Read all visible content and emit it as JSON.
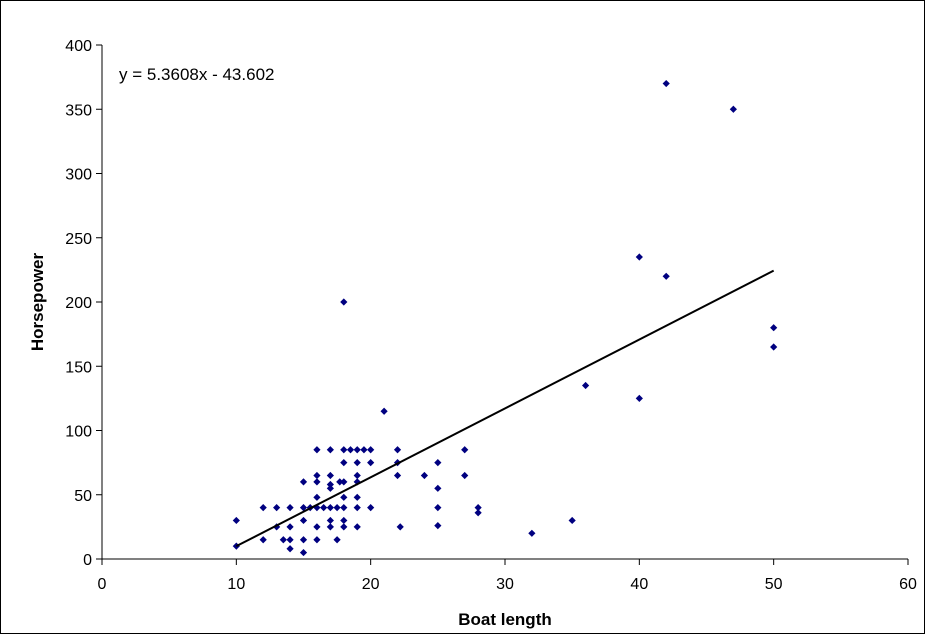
{
  "chart_data": {
    "type": "scatter",
    "title": "",
    "xlabel": "Boat length",
    "ylabel": "Horsepower",
    "xlim": [
      0,
      60
    ],
    "ylim": [
      0,
      400
    ],
    "x_ticks": [
      "0",
      "10",
      "20",
      "30",
      "40",
      "50",
      "60"
    ],
    "y_ticks": [
      "0",
      "50",
      "100",
      "150",
      "200",
      "250",
      "300",
      "350",
      "400"
    ],
    "grid": false,
    "legend": "none",
    "marker_color": "#000080",
    "trendline": {
      "type": "linear",
      "equation_label": "y = 5.3608x - 43.602",
      "slope": 5.3608,
      "intercept": -43.602,
      "x_range": [
        10,
        50
      ],
      "color": "#000000"
    },
    "series": [
      {
        "points": [
          [
            10,
            30
          ],
          [
            10,
            10
          ],
          [
            12,
            40
          ],
          [
            12,
            15
          ],
          [
            13,
            40
          ],
          [
            13,
            25
          ],
          [
            13.5,
            15
          ],
          [
            14,
            40
          ],
          [
            14,
            25
          ],
          [
            14,
            15
          ],
          [
            14,
            8
          ],
          [
            15,
            60
          ],
          [
            15,
            40
          ],
          [
            15,
            30
          ],
          [
            15,
            15
          ],
          [
            15,
            5
          ],
          [
            15.5,
            40
          ],
          [
            16,
            85
          ],
          [
            16,
            65
          ],
          [
            16,
            60
          ],
          [
            16,
            48
          ],
          [
            16,
            40
          ],
          [
            16,
            25
          ],
          [
            16,
            15
          ],
          [
            16.5,
            40
          ],
          [
            17,
            85
          ],
          [
            17,
            65
          ],
          [
            17,
            58
          ],
          [
            17,
            55
          ],
          [
            17,
            40
          ],
          [
            17,
            30
          ],
          [
            17,
            25
          ],
          [
            17.5,
            40
          ],
          [
            17.5,
            15
          ],
          [
            17.7,
            60
          ],
          [
            18,
            200
          ],
          [
            18,
            85
          ],
          [
            18,
            75
          ],
          [
            18,
            60
          ],
          [
            18,
            48
          ],
          [
            18,
            40
          ],
          [
            18,
            30
          ],
          [
            18,
            25
          ],
          [
            18.5,
            85
          ],
          [
            19,
            85
          ],
          [
            19,
            75
          ],
          [
            19,
            65
          ],
          [
            19,
            60
          ],
          [
            19,
            48
          ],
          [
            19,
            40
          ],
          [
            19,
            25
          ],
          [
            19.5,
            85
          ],
          [
            20,
            85
          ],
          [
            20,
            75
          ],
          [
            20,
            40
          ],
          [
            21,
            115
          ],
          [
            22,
            85
          ],
          [
            22,
            75
          ],
          [
            22,
            65
          ],
          [
            22.2,
            25
          ],
          [
            24,
            65
          ],
          [
            25,
            75
          ],
          [
            25,
            55
          ],
          [
            25,
            40
          ],
          [
            25,
            26
          ],
          [
            27,
            85
          ],
          [
            27,
            65
          ],
          [
            28,
            40
          ],
          [
            28,
            36
          ],
          [
            32,
            20
          ],
          [
            35,
            30
          ],
          [
            36,
            135
          ],
          [
            40,
            235
          ],
          [
            40,
            125
          ],
          [
            42,
            370
          ],
          [
            42,
            220
          ],
          [
            47,
            350
          ],
          [
            50,
            180
          ],
          [
            50,
            165
          ]
        ]
      }
    ]
  }
}
